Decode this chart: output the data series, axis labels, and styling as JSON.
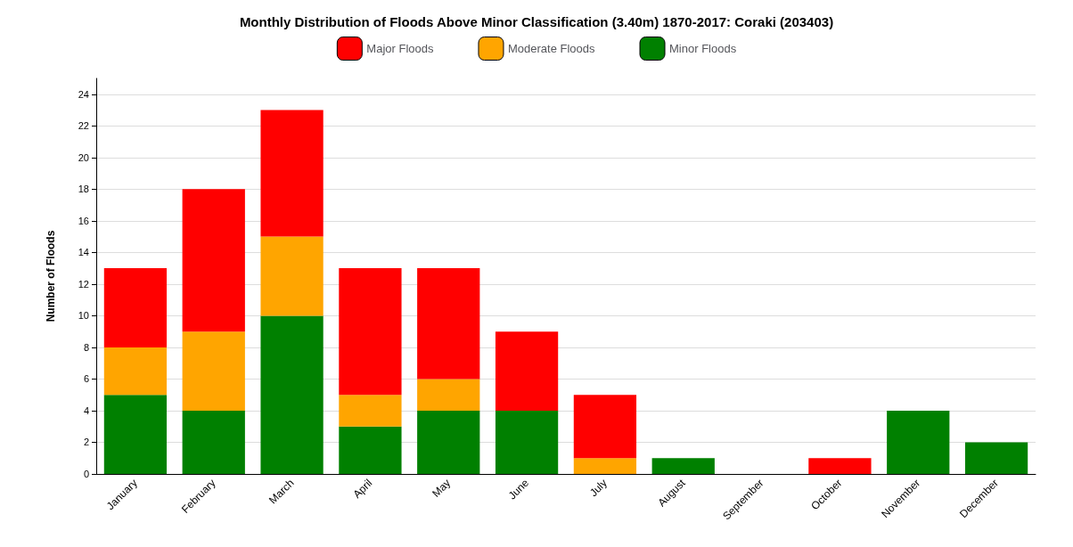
{
  "chart_data": {
    "type": "bar",
    "title": "Monthly Distribution of Floods Above Minor Classification (3.40m) 1870-2017: Coraki (203403)",
    "ylabel": "Number of Floods",
    "categories": [
      "January",
      "February",
      "March",
      "April",
      "May",
      "June",
      "July",
      "August",
      "September",
      "October",
      "November",
      "December"
    ],
    "stacked": true,
    "series": [
      {
        "name": "Minor Floods",
        "color": "#008000",
        "values": [
          5,
          4,
          10,
          3,
          4,
          4,
          0,
          1,
          0,
          0,
          4,
          2
        ]
      },
      {
        "name": "Moderate Floods",
        "color": "#ffa500",
        "values": [
          3,
          5,
          5,
          2,
          2,
          0,
          1,
          0,
          0,
          0,
          0,
          0
        ]
      },
      {
        "name": "Major Floods",
        "color": "#ff0000",
        "values": [
          5,
          9,
          8,
          8,
          7,
          5,
          4,
          0,
          0,
          1,
          0,
          0
        ]
      }
    ],
    "ylim": [
      0,
      25
    ],
    "yticks": [
      0,
      2,
      4,
      6,
      8,
      10,
      12,
      14,
      16,
      18,
      20,
      22,
      24
    ],
    "grid": "y",
    "legend": "top"
  }
}
